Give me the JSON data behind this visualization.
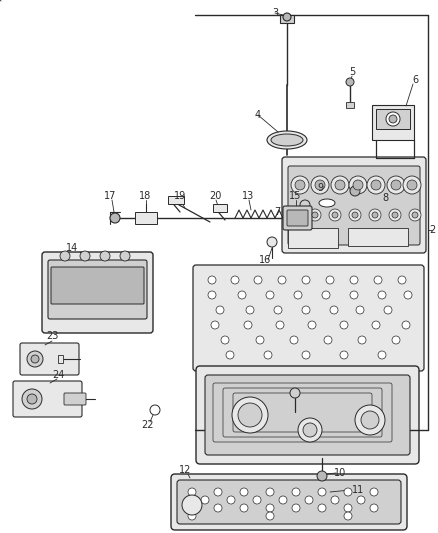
{
  "bg_color": "#ffffff",
  "lc": "#2a2a2a",
  "fc_light": "#e8e8e8",
  "fc_mid": "#d0d0d0",
  "fc_dark": "#b8b8b8",
  "label_fs": 7,
  "fig_w": 4.39,
  "fig_h": 5.33,
  "dpi": 100
}
